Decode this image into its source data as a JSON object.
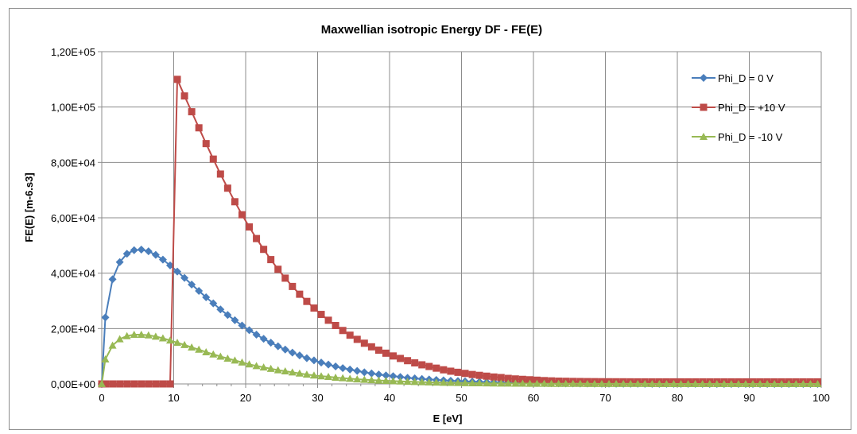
{
  "chart_data": {
    "type": "line",
    "title": "Maxwellian isotropic Energy DF - FE(E)",
    "xlabel": "E [eV]",
    "ylabel": "FE(E) [m-6.s3]",
    "xlim": [
      0,
      100
    ],
    "ylim": [
      0,
      120000
    ],
    "x_ticks": [
      "0",
      "10",
      "20",
      "30",
      "40",
      "50",
      "60",
      "70",
      "80",
      "90",
      "100"
    ],
    "y_ticks": [
      "0,00E+00",
      "2,00E+04",
      "4,00E+04",
      "6,00E+04",
      "8,00E+04",
      "1,00E+05",
      "1,20E+05"
    ],
    "x_tick_values": [
      0,
      10,
      20,
      30,
      40,
      50,
      60,
      70,
      80,
      90,
      100
    ],
    "y_tick_values": [
      0,
      20000,
      40000,
      60000,
      80000,
      100000,
      120000
    ],
    "grid": true,
    "legend_position": "top-right",
    "x_step": 1,
    "series": [
      {
        "name": "Phi_D = 0 V",
        "color": "#4a7ebb",
        "marker": "diamond",
        "points": [
          [
            0,
            0
          ],
          [
            0.5,
            24000
          ],
          [
            1.5,
            37800
          ],
          [
            2.5,
            44000
          ],
          [
            3.5,
            47000
          ],
          [
            4.5,
            48300
          ],
          [
            5.5,
            48500
          ],
          [
            6.5,
            47900
          ],
          [
            7.5,
            46600
          ],
          [
            8.5,
            44900
          ],
          [
            9.5,
            42800
          ],
          [
            10.5,
            40600
          ],
          [
            11.5,
            38300
          ],
          [
            12.5,
            35900
          ],
          [
            13.5,
            33600
          ],
          [
            14.5,
            31300
          ],
          [
            15.5,
            29100
          ],
          [
            16.5,
            26900
          ],
          [
            17.5,
            24900
          ],
          [
            18.5,
            23000
          ],
          [
            19.5,
            21100
          ],
          [
            20.5,
            19400
          ],
          [
            21.5,
            17800
          ],
          [
            22.5,
            16300
          ],
          [
            23.5,
            14900
          ],
          [
            24.5,
            13600
          ],
          [
            25.5,
            12400
          ],
          [
            26.5,
            11300
          ],
          [
            27.5,
            10300
          ],
          [
            28.5,
            9300
          ],
          [
            29.5,
            8500
          ],
          [
            30.5,
            7700
          ],
          [
            31.5,
            7000
          ],
          [
            32.5,
            6300
          ],
          [
            33.5,
            5700
          ],
          [
            34.5,
            5200
          ],
          [
            35.5,
            4700
          ],
          [
            36.5,
            4200
          ],
          [
            37.5,
            3800
          ],
          [
            38.5,
            3400
          ],
          [
            39.5,
            3100
          ],
          [
            40.5,
            2800
          ],
          [
            41.5,
            2500
          ],
          [
            42.5,
            2200
          ],
          [
            43.5,
            2000
          ],
          [
            44.5,
            1800
          ],
          [
            45.5,
            1600
          ],
          [
            46.5,
            1450
          ],
          [
            47.5,
            1300
          ],
          [
            48.5,
            1160
          ],
          [
            49.5,
            1040
          ],
          [
            50.5,
            930
          ],
          [
            51.5,
            830
          ],
          [
            52.5,
            740
          ],
          [
            53.5,
            660
          ],
          [
            54.5,
            590
          ],
          [
            55.5,
            530
          ],
          [
            56.5,
            470
          ],
          [
            57.5,
            420
          ],
          [
            58.5,
            370
          ],
          [
            59.5,
            330
          ],
          [
            60.5,
            300
          ],
          [
            61.5,
            265
          ],
          [
            62.5,
            235
          ],
          [
            63.5,
            210
          ],
          [
            64.5,
            185
          ],
          [
            65.5,
            165
          ],
          [
            66.5,
            147
          ],
          [
            67.5,
            130
          ],
          [
            68.5,
            115
          ],
          [
            69.5,
            102
          ],
          [
            70.5,
            91
          ],
          [
            71.5,
            81
          ],
          [
            72.5,
            72
          ],
          [
            73.5,
            64
          ],
          [
            74.5,
            56
          ],
          [
            75.5,
            50
          ],
          [
            76.5,
            44
          ],
          [
            77.5,
            39
          ],
          [
            78.5,
            35
          ],
          [
            79.5,
            31
          ],
          [
            80.5,
            27
          ],
          [
            81.5,
            24
          ],
          [
            82.5,
            21
          ],
          [
            83.5,
            19
          ],
          [
            84.5,
            17
          ],
          [
            85.5,
            15
          ],
          [
            86.5,
            13
          ],
          [
            87.5,
            12
          ],
          [
            88.5,
            10
          ],
          [
            89.5,
            9
          ],
          [
            90.5,
            8
          ],
          [
            91.5,
            7
          ],
          [
            92.5,
            6
          ],
          [
            93.5,
            5
          ],
          [
            94.5,
            5
          ],
          [
            95.5,
            4
          ],
          [
            96.5,
            4
          ],
          [
            97.5,
            3
          ],
          [
            98.5,
            3
          ],
          [
            99.5,
            2
          ]
        ]
      },
      {
        "name": "Phi_D = +10 V",
        "color": "#be4b48",
        "marker": "square",
        "points": [
          [
            0,
            0
          ],
          [
            0.5,
            0
          ],
          [
            1.5,
            0
          ],
          [
            2.5,
            0
          ],
          [
            3.5,
            0
          ],
          [
            4.5,
            0
          ],
          [
            5.5,
            0
          ],
          [
            6.5,
            0
          ],
          [
            7.5,
            0
          ],
          [
            8.5,
            0
          ],
          [
            9.5,
            0
          ],
          [
            10.5,
            110000
          ],
          [
            11.5,
            104000
          ],
          [
            12.5,
            98300
          ],
          [
            13.5,
            92500
          ],
          [
            14.5,
            86800
          ],
          [
            15.5,
            81200
          ],
          [
            16.5,
            75800
          ],
          [
            17.5,
            70700
          ],
          [
            18.5,
            65800
          ],
          [
            19.5,
            61100
          ],
          [
            20.5,
            56700
          ],
          [
            21.5,
            52500
          ],
          [
            22.5,
            48600
          ],
          [
            23.5,
            44900
          ],
          [
            24.5,
            41400
          ],
          [
            25.5,
            38200
          ],
          [
            26.5,
            35200
          ],
          [
            27.5,
            32400
          ],
          [
            28.5,
            29800
          ],
          [
            29.5,
            27400
          ],
          [
            30.5,
            25100
          ],
          [
            31.5,
            23000
          ],
          [
            32.5,
            21100
          ],
          [
            33.5,
            19300
          ],
          [
            34.5,
            17600
          ],
          [
            35.5,
            16100
          ],
          [
            36.5,
            14700
          ],
          [
            37.5,
            13400
          ],
          [
            38.5,
            12200
          ],
          [
            39.5,
            11100
          ],
          [
            40.5,
            10100
          ],
          [
            41.5,
            9200
          ],
          [
            42.5,
            8400
          ],
          [
            43.5,
            7600
          ],
          [
            44.5,
            6900
          ],
          [
            45.5,
            6300
          ],
          [
            46.5,
            5700
          ],
          [
            47.5,
            5100
          ],
          [
            48.5,
            4600
          ],
          [
            49.5,
            4200
          ],
          [
            50.5,
            3800
          ],
          [
            51.5,
            3400
          ],
          [
            52.5,
            3100
          ],
          [
            53.5,
            2800
          ],
          [
            54.5,
            2500
          ],
          [
            55.5,
            2300
          ],
          [
            56.5,
            2000
          ],
          [
            57.5,
            1800
          ],
          [
            58.5,
            1650
          ],
          [
            59.5,
            1500
          ],
          [
            60.5,
            1350
          ],
          [
            61.5,
            1200
          ],
          [
            62.5,
            1100
          ],
          [
            63.5,
            1000
          ],
          [
            64.5,
            950
          ],
          [
            65.5,
            900
          ],
          [
            66.5,
            870
          ],
          [
            67.5,
            840
          ],
          [
            68.5,
            820
          ],
          [
            69.5,
            800
          ],
          [
            70.5,
            790
          ],
          [
            71.5,
            780
          ],
          [
            72.5,
            770
          ],
          [
            73.5,
            760
          ],
          [
            74.5,
            750
          ],
          [
            75.5,
            750
          ],
          [
            76.5,
            750
          ],
          [
            77.5,
            750
          ],
          [
            78.5,
            750
          ],
          [
            79.5,
            750
          ],
          [
            80.5,
            750
          ],
          [
            81.5,
            750
          ],
          [
            82.5,
            750
          ],
          [
            83.5,
            750
          ],
          [
            84.5,
            750
          ],
          [
            85.5,
            750
          ],
          [
            86.5,
            750
          ],
          [
            87.5,
            750
          ],
          [
            88.5,
            750
          ],
          [
            89.5,
            750
          ],
          [
            90.5,
            750
          ],
          [
            91.5,
            750
          ],
          [
            92.5,
            750
          ],
          [
            93.5,
            750
          ],
          [
            94.5,
            750
          ],
          [
            95.5,
            750
          ],
          [
            96.5,
            750
          ],
          [
            97.5,
            750
          ],
          [
            98.5,
            750
          ],
          [
            99.5,
            750
          ]
        ]
      },
      {
        "name": "Phi_D = -10 V",
        "color": "#98b954",
        "marker": "triangle",
        "points": [
          [
            0,
            0
          ],
          [
            0.5,
            8900
          ],
          [
            1.5,
            13900
          ],
          [
            2.5,
            16200
          ],
          [
            3.5,
            17300
          ],
          [
            4.5,
            17800
          ],
          [
            5.5,
            17800
          ],
          [
            6.5,
            17600
          ],
          [
            7.5,
            17100
          ],
          [
            8.5,
            16500
          ],
          [
            9.5,
            15700
          ],
          [
            10.5,
            14900
          ],
          [
            11.5,
            14100
          ],
          [
            12.5,
            13200
          ],
          [
            13.5,
            12400
          ],
          [
            14.5,
            11500
          ],
          [
            15.5,
            10700
          ],
          [
            16.5,
            9900
          ],
          [
            17.5,
            9200
          ],
          [
            18.5,
            8500
          ],
          [
            19.5,
            7800
          ],
          [
            20.5,
            7100
          ],
          [
            21.5,
            6500
          ],
          [
            22.5,
            6000
          ],
          [
            23.5,
            5500
          ],
          [
            24.5,
            5000
          ],
          [
            25.5,
            4600
          ],
          [
            26.5,
            4200
          ],
          [
            27.5,
            3800
          ],
          [
            28.5,
            3400
          ],
          [
            29.5,
            3100
          ],
          [
            30.5,
            2800
          ],
          [
            31.5,
            2600
          ],
          [
            32.5,
            2300
          ],
          [
            33.5,
            2100
          ],
          [
            34.5,
            1900
          ],
          [
            35.5,
            1700
          ],
          [
            36.5,
            1550
          ],
          [
            37.5,
            1400
          ],
          [
            38.5,
            1250
          ],
          [
            39.5,
            1140
          ],
          [
            40.5,
            1030
          ],
          [
            41.5,
            920
          ],
          [
            42.5,
            830
          ],
          [
            43.5,
            740
          ],
          [
            44.5,
            670
          ],
          [
            45.5,
            600
          ],
          [
            46.5,
            540
          ],
          [
            47.5,
            480
          ],
          [
            48.5,
            430
          ],
          [
            49.5,
            380
          ],
          [
            50.5,
            340
          ],
          [
            51.5,
            300
          ],
          [
            52.5,
            270
          ],
          [
            53.5,
            240
          ],
          [
            54.5,
            215
          ],
          [
            55.5,
            195
          ],
          [
            56.5,
            175
          ],
          [
            57.5,
            155
          ],
          [
            58.5,
            138
          ],
          [
            59.5,
            122
          ],
          [
            60.5,
            110
          ],
          [
            61.5,
            98
          ],
          [
            62.5,
            87
          ],
          [
            63.5,
            77
          ],
          [
            64.5,
            68
          ],
          [
            65.5,
            60
          ],
          [
            66.5,
            54
          ],
          [
            67.5,
            48
          ],
          [
            68.5,
            42
          ],
          [
            69.5,
            37
          ],
          [
            70.5,
            33
          ],
          [
            71.5,
            29
          ],
          [
            72.5,
            26
          ],
          [
            73.5,
            23
          ],
          [
            74.5,
            20
          ],
          [
            75.5,
            18
          ],
          [
            76.5,
            16
          ],
          [
            77.5,
            14
          ],
          [
            78.5,
            13
          ],
          [
            79.5,
            11
          ],
          [
            80.5,
            10
          ],
          [
            81.5,
            9
          ],
          [
            82.5,
            8
          ],
          [
            83.5,
            7
          ],
          [
            84.5,
            6
          ],
          [
            85.5,
            5
          ],
          [
            86.5,
            5
          ],
          [
            87.5,
            4
          ],
          [
            88.5,
            4
          ],
          [
            89.5,
            3
          ],
          [
            90.5,
            3
          ],
          [
            91.5,
            3
          ],
          [
            92.5,
            2
          ],
          [
            93.5,
            2
          ],
          [
            94.5,
            2
          ],
          [
            95.5,
            2
          ],
          [
            96.5,
            1
          ],
          [
            97.5,
            1
          ],
          [
            98.5,
            1
          ],
          [
            99.5,
            1
          ]
        ]
      }
    ]
  }
}
